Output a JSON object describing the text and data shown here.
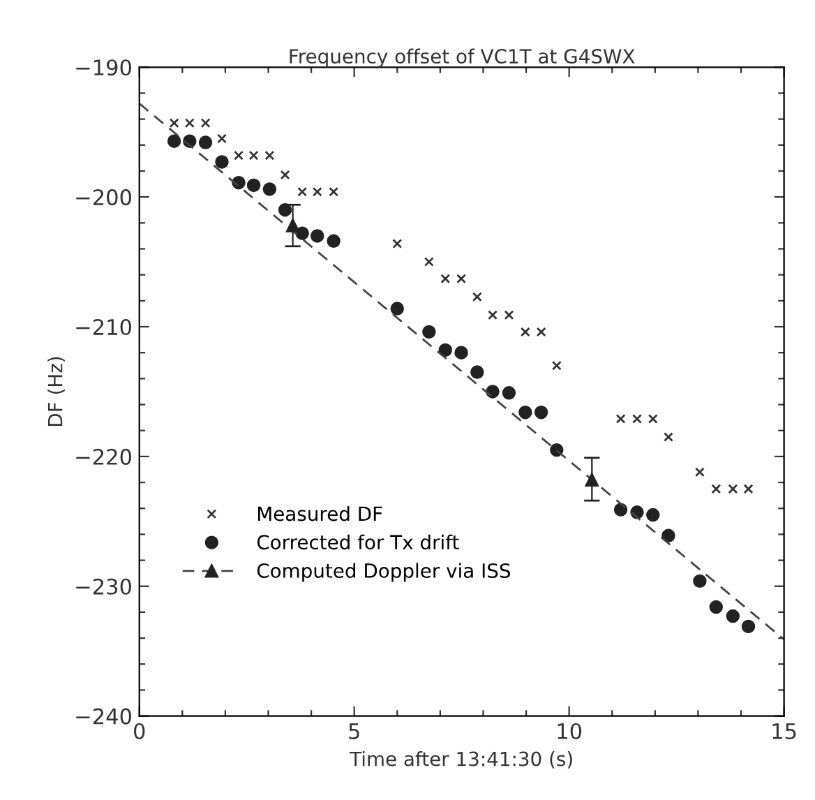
{
  "chart_data": {
    "type": "scatter",
    "title": "Frequency offset of VC1T at G4SWX",
    "xlabel": "Time after 13:41:30 (s)",
    "ylabel": "DF (Hz)",
    "xlim": [
      0,
      15
    ],
    "ylim": [
      -240,
      -190
    ],
    "xticks": [
      0,
      {
        "value": 1,
        "label": null
      },
      {
        "value": 2,
        "label": null
      },
      {
        "value": 3,
        "label": null
      },
      {
        "value": 4,
        "label": null
      },
      5,
      {
        "value": 6,
        "label": null
      },
      {
        "value": 7,
        "label": null
      },
      {
        "value": 8,
        "label": null
      },
      {
        "value": 9,
        "label": null
      },
      10,
      {
        "value": 11,
        "label": null
      },
      {
        "value": 12,
        "label": null
      },
      {
        "value": 13,
        "label": null
      },
      {
        "value": 14,
        "label": null
      },
      15
    ],
    "yticks": [
      {
        "value": -240,
        "label": "−240"
      },
      {
        "value": -238,
        "label": null
      },
      {
        "value": -236,
        "label": null
      },
      {
        "value": -234,
        "label": null
      },
      {
        "value": -232,
        "label": null
      },
      {
        "value": -230,
        "label": "−230"
      },
      {
        "value": -228,
        "label": null
      },
      {
        "value": -226,
        "label": null
      },
      {
        "value": -224,
        "label": null
      },
      {
        "value": -222,
        "label": null
      },
      {
        "value": -220,
        "label": "−220"
      },
      {
        "value": -218,
        "label": null
      },
      {
        "value": -216,
        "label": null
      },
      {
        "value": -214,
        "label": null
      },
      {
        "value": -212,
        "label": null
      },
      {
        "value": -210,
        "label": "−210"
      },
      {
        "value": -208,
        "label": null
      },
      {
        "value": -206,
        "label": null
      },
      {
        "value": -204,
        "label": null
      },
      {
        "value": -202,
        "label": null
      },
      {
        "value": -200,
        "label": "−200"
      },
      {
        "value": -198,
        "label": null
      },
      {
        "value": -196,
        "label": null
      },
      {
        "value": -194,
        "label": null
      },
      {
        "value": -192,
        "label": null
      },
      {
        "value": -190,
        "label": "−190"
      }
    ],
    "grid": false,
    "legend": "bottom left",
    "series": [
      {
        "name": "Measured DF",
        "marker": "cross",
        "color": "#333333",
        "x": [
          0.81,
          1.17,
          1.54,
          1.92,
          2.31,
          2.66,
          3.03,
          3.39,
          3.79,
          4.14,
          4.52,
          6.0,
          6.74,
          7.12,
          7.49,
          7.86,
          8.22,
          8.6,
          8.98,
          9.35,
          9.71,
          11.2,
          11.58,
          11.95,
          12.31,
          13.04,
          13.42,
          13.81,
          14.17
        ],
        "values": [
          -194.3,
          -194.3,
          -194.3,
          -195.5,
          -196.8,
          -196.8,
          -196.8,
          -198.3,
          -199.6,
          -199.6,
          -199.6,
          -203.6,
          -205.0,
          -206.3,
          -206.3,
          -207.7,
          -209.1,
          -209.1,
          -210.4,
          -210.4,
          -213.0,
          -217.1,
          -217.1,
          -217.1,
          -218.5,
          -221.2,
          -222.5,
          -222.5,
          -222.5
        ]
      },
      {
        "name": "Corrected for Tx drift",
        "marker": "circle",
        "color": "#222222",
        "x": [
          0.81,
          1.17,
          1.54,
          1.92,
          2.31,
          2.66,
          3.03,
          3.39,
          3.79,
          4.14,
          4.52,
          6.0,
          6.74,
          7.12,
          7.49,
          7.86,
          8.22,
          8.6,
          8.98,
          9.35,
          9.71,
          11.2,
          11.58,
          11.95,
          12.31,
          13.04,
          13.42,
          13.81,
          14.17
        ],
        "values": [
          -195.7,
          -195.7,
          -195.8,
          -197.3,
          -198.9,
          -199.1,
          -199.4,
          -201.0,
          -202.8,
          -203.0,
          -203.4,
          -208.6,
          -210.4,
          -211.8,
          -212.0,
          -213.5,
          -215.0,
          -215.1,
          -216.6,
          -216.6,
          -219.5,
          -224.1,
          -224.3,
          -224.5,
          -226.1,
          -229.6,
          -231.6,
          -232.3,
          -233.1
        ]
      },
      {
        "name": "Computed Doppler via ISS",
        "type": "line",
        "line_style": "dashed",
        "marker": "none",
        "color": "#444444",
        "x": [
          0,
          15
        ],
        "values": [
          -192.8,
          -234.1
        ]
      },
      {
        "marker": "triangle",
        "color": "#222222",
        "x": [
          3.57,
          10.53
        ],
        "values": [
          -202.2,
          -221.8
        ],
        "errors": [
          [
            -203.8,
            -200.6
          ],
          [
            -223.4,
            -220.1
          ]
        ]
      }
    ]
  }
}
